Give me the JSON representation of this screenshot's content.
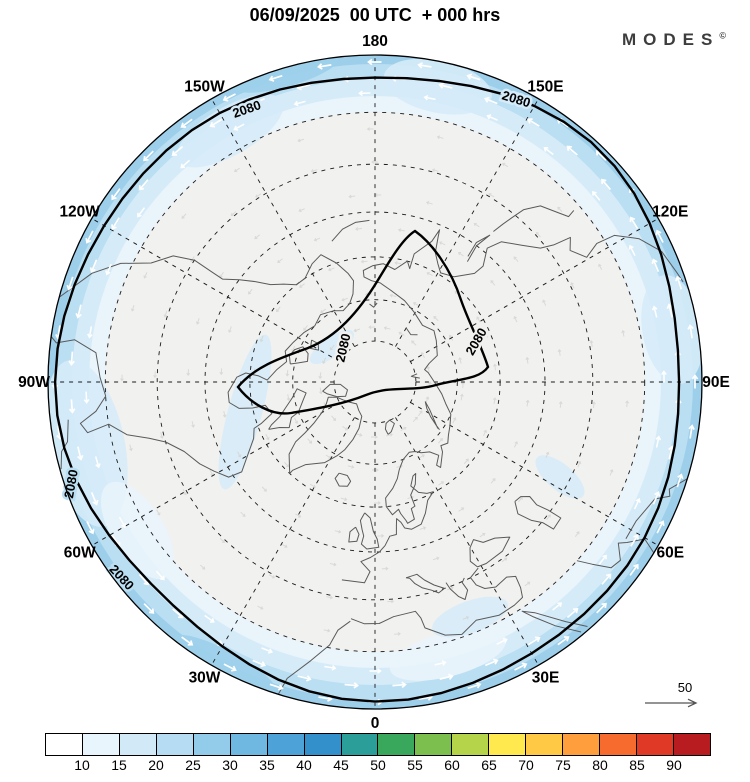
{
  "header": {
    "title": "06/09/2025  00 UTC  + 000 hrs",
    "logo_text": "MODES",
    "logo_mark": "©"
  },
  "map": {
    "graticule_labels": [
      {
        "text": "180",
        "lon": 180
      },
      {
        "text": "150W",
        "lon": -150
      },
      {
        "text": "150E",
        "lon": 150
      },
      {
        "text": "120W",
        "lon": -120
      },
      {
        "text": "120E",
        "lon": 120
      },
      {
        "text": "90W",
        "lon": -90
      },
      {
        "text": "90E",
        "lon": 90
      },
      {
        "text": "60W",
        "lon": -60
      },
      {
        "text": "60E",
        "lon": 60
      },
      {
        "text": "30W",
        "lon": -30
      },
      {
        "text": "30E",
        "lon": 30
      },
      {
        "text": "0",
        "lon": 0
      }
    ],
    "contour": {
      "label": "2080"
    },
    "wind_reference": {
      "value": "50"
    },
    "shading": {
      "ring1": "#9dcfeb",
      "ring2": "#badef2",
      "ring3": "#d6ebf8",
      "ring4": "#e9f4fb",
      "interior": "#f1f1ef",
      "inner_streak": "#d6ebf8",
      "arrow_white": "#ffffff",
      "arrow_faint": "#d2d2d0"
    }
  },
  "colorbar": {
    "tick_labels": [
      "10",
      "15",
      "20",
      "25",
      "30",
      "35",
      "40",
      "45",
      "50",
      "55",
      "60",
      "65",
      "70",
      "75",
      "80",
      "85",
      "90"
    ],
    "cell_colors": [
      "#ffffff",
      "#e9f5fc",
      "#d2eaf8",
      "#b5dcf2",
      "#93cbea",
      "#6fb8e2",
      "#4da3d8",
      "#3390cb",
      "#2b9e99",
      "#3aa85c",
      "#7cbf4e",
      "#b5d44a",
      "#ffe94e",
      "#ffc845",
      "#ff9e3d",
      "#f76b2e",
      "#e03a27",
      "#b81b20"
    ]
  }
}
